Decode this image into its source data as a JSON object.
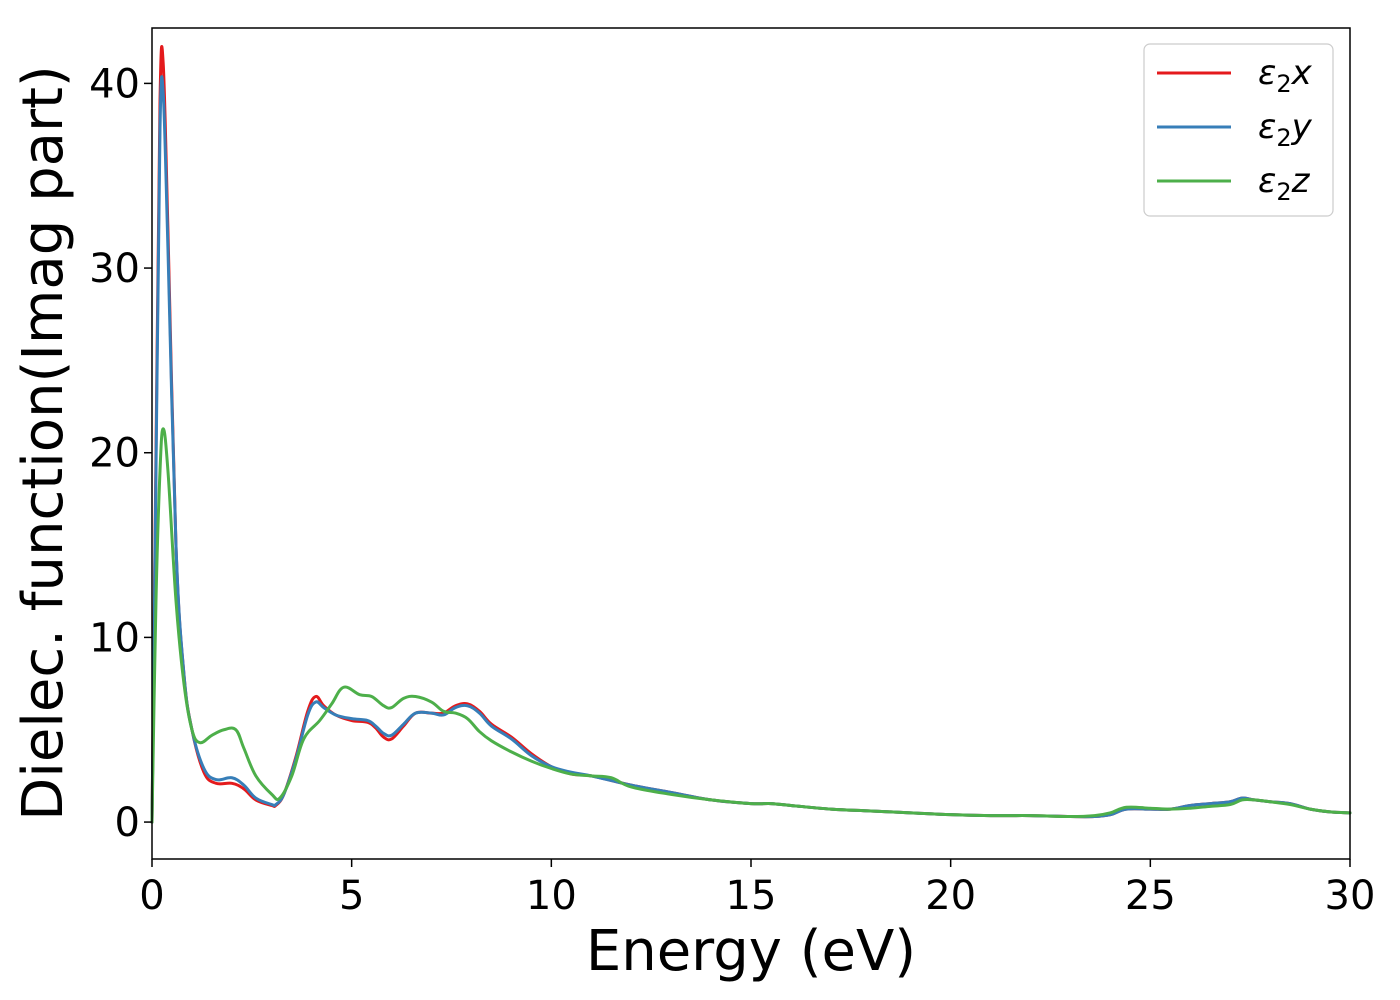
{
  "chart_data": {
    "type": "line",
    "title": "",
    "xlabel": "Energy (eV)",
    "ylabel": "Dielec. function(Imag part)",
    "xlim": [
      0,
      30
    ],
    "ylim": [
      -2,
      43
    ],
    "xticks": [
      0,
      5,
      10,
      15,
      20,
      25,
      30
    ],
    "yticks": [
      0,
      10,
      20,
      30,
      40
    ],
    "grid": false,
    "legend_position": "top-right",
    "series": [
      {
        "name": "ε2x",
        "legend_base": "ε",
        "legend_sub": "2",
        "legend_suffix": "x",
        "color": "#e41a1c",
        "x": [
          0,
          0.1,
          0.2,
          0.28,
          0.4,
          0.6,
          0.8,
          1.0,
          1.3,
          1.6,
          2.0,
          2.3,
          2.6,
          3.0,
          3.1,
          3.3,
          3.6,
          3.9,
          4.1,
          4.3,
          4.6,
          5.0,
          5.4,
          5.6,
          5.8,
          6.0,
          6.3,
          6.6,
          7.0,
          7.3,
          7.6,
          7.9,
          8.2,
          8.5,
          9.0,
          9.5,
          10.0,
          10.5,
          11.0,
          12.0,
          13.0,
          14.0,
          15.0,
          15.5,
          16.0,
          17.0,
          18.0,
          19.0,
          20.0,
          21.0,
          22.0,
          23.0,
          23.6,
          24.0,
          24.4,
          25.0,
          25.5,
          26.0,
          26.5,
          27.0,
          27.3,
          27.6,
          28.0,
          28.5,
          29.0,
          29.5,
          30.0
        ],
        "y": [
          0,
          20,
          39,
          41.1,
          32,
          15,
          8,
          5.0,
          2.7,
          2.1,
          2.1,
          1.8,
          1.2,
          0.9,
          0.9,
          1.5,
          3.5,
          6.0,
          6.8,
          6.3,
          5.8,
          5.5,
          5.4,
          5.1,
          4.6,
          4.5,
          5.2,
          5.9,
          5.9,
          5.9,
          6.3,
          6.4,
          6.0,
          5.3,
          4.6,
          3.7,
          3.0,
          2.6,
          2.5,
          2.0,
          1.6,
          1.2,
          1.0,
          1.0,
          0.9,
          0.7,
          0.6,
          0.5,
          0.4,
          0.35,
          0.35,
          0.3,
          0.3,
          0.4,
          0.7,
          0.7,
          0.7,
          0.9,
          1.0,
          1.1,
          1.3,
          1.2,
          1.1,
          1.0,
          0.7,
          0.55,
          0.5
        ]
      },
      {
        "name": "ε2y",
        "legend_base": "ε",
        "legend_sub": "2",
        "legend_suffix": "y",
        "color": "#377eb8",
        "x": [
          0,
          0.1,
          0.2,
          0.28,
          0.4,
          0.6,
          0.8,
          1.0,
          1.3,
          1.6,
          2.0,
          2.3,
          2.6,
          3.0,
          3.1,
          3.3,
          3.6,
          3.9,
          4.1,
          4.3,
          4.6,
          5.0,
          5.4,
          5.6,
          5.8,
          6.0,
          6.3,
          6.6,
          7.0,
          7.3,
          7.6,
          7.9,
          8.2,
          8.5,
          9.0,
          9.5,
          10.0,
          10.5,
          11.0,
          12.0,
          13.0,
          14.0,
          15.0,
          15.5,
          16.0,
          17.0,
          18.0,
          19.0,
          20.0,
          21.0,
          22.0,
          23.0,
          23.6,
          24.0,
          24.4,
          25.0,
          25.5,
          26.0,
          26.5,
          27.0,
          27.3,
          27.6,
          28.0,
          28.5,
          29.0,
          29.5,
          30.0
        ],
        "y": [
          0,
          19,
          37.5,
          39.5,
          31,
          15,
          8,
          5.0,
          2.9,
          2.3,
          2.4,
          2.0,
          1.3,
          0.95,
          0.95,
          1.5,
          3.4,
          5.8,
          6.5,
          6.2,
          5.8,
          5.6,
          5.5,
          5.2,
          4.8,
          4.7,
          5.3,
          5.9,
          5.9,
          5.8,
          6.2,
          6.3,
          5.9,
          5.2,
          4.5,
          3.6,
          3.0,
          2.7,
          2.5,
          2.0,
          1.6,
          1.2,
          1.0,
          1.0,
          0.9,
          0.7,
          0.6,
          0.5,
          0.4,
          0.35,
          0.35,
          0.3,
          0.3,
          0.4,
          0.7,
          0.7,
          0.7,
          0.9,
          1.0,
          1.1,
          1.3,
          1.2,
          1.1,
          1.0,
          0.7,
          0.55,
          0.5
        ]
      },
      {
        "name": "ε2z",
        "legend_base": "ε",
        "legend_sub": "2",
        "legend_suffix": "z",
        "color": "#4daf4a",
        "x": [
          0,
          0.1,
          0.2,
          0.28,
          0.4,
          0.6,
          0.8,
          1.0,
          1.2,
          1.5,
          1.8,
          2.1,
          2.3,
          2.6,
          3.0,
          3.2,
          3.5,
          3.8,
          4.2,
          4.5,
          4.8,
          5.2,
          5.5,
          5.8,
          6.0,
          6.3,
          6.6,
          7.0,
          7.3,
          7.6,
          7.9,
          8.2,
          8.5,
          9.0,
          9.5,
          10.0,
          10.5,
          11.0,
          11.5,
          12.0,
          13.0,
          14.0,
          15.0,
          15.5,
          16.0,
          17.0,
          18.0,
          19.0,
          20.0,
          21.0,
          22.0,
          23.0,
          23.6,
          24.0,
          24.4,
          25.0,
          25.5,
          26.0,
          26.5,
          27.0,
          27.3,
          27.6,
          28.0,
          28.5,
          29.0,
          29.5,
          30.0
        ],
        "y": [
          0,
          12,
          19,
          21.3,
          19,
          12,
          7.5,
          5.0,
          4.3,
          4.7,
          5.0,
          5.0,
          4.0,
          2.5,
          1.5,
          1.3,
          2.5,
          4.5,
          5.5,
          6.4,
          7.3,
          6.9,
          6.8,
          6.3,
          6.2,
          6.7,
          6.8,
          6.5,
          6.0,
          5.9,
          5.6,
          4.9,
          4.4,
          3.8,
          3.3,
          2.9,
          2.6,
          2.5,
          2.4,
          1.9,
          1.5,
          1.2,
          1.0,
          1.0,
          0.9,
          0.7,
          0.6,
          0.5,
          0.4,
          0.35,
          0.35,
          0.3,
          0.35,
          0.5,
          0.8,
          0.75,
          0.7,
          0.75,
          0.85,
          0.95,
          1.2,
          1.2,
          1.1,
          0.95,
          0.7,
          0.55,
          0.5
        ]
      }
    ]
  }
}
